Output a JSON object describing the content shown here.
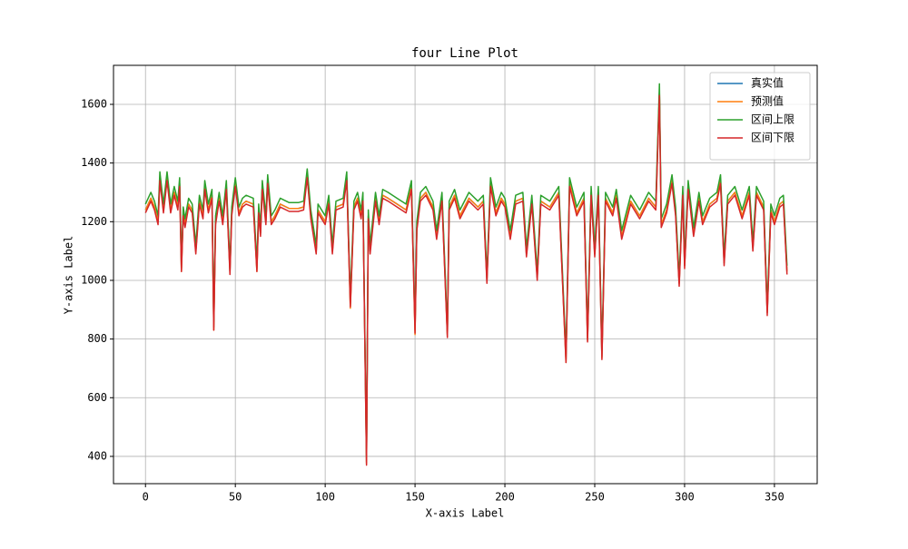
{
  "chart_data": {
    "type": "line",
    "title": "four Line Plot",
    "x_label": "X-axis Label",
    "y_label": "Y-axis Label",
    "x": [
      0,
      3,
      5,
      7,
      8,
      10,
      12,
      14,
      16,
      18,
      19,
      20,
      21,
      22,
      24,
      26,
      28,
      30,
      32,
      33,
      35,
      37,
      38,
      39,
      41,
      43,
      45,
      47,
      48,
      50,
      52,
      54,
      56,
      60,
      62,
      63,
      64,
      65,
      67,
      68,
      70,
      72,
      75,
      80,
      85,
      88,
      90,
      92,
      95,
      96,
      100,
      102,
      104,
      106,
      110,
      112,
      114,
      116,
      118,
      120,
      121,
      123,
      124,
      125,
      128,
      130,
      132,
      135,
      140,
      145,
      148,
      150,
      151,
      153,
      156,
      160,
      162,
      165,
      168,
      169,
      172,
      175,
      180,
      185,
      188,
      190,
      192,
      195,
      198,
      200,
      203,
      206,
      210,
      212,
      215,
      218,
      220,
      225,
      230,
      234,
      236,
      240,
      244,
      246,
      248,
      250,
      252,
      254,
      256,
      260,
      262,
      265,
      270,
      275,
      280,
      284,
      286,
      287,
      290,
      293,
      295,
      297,
      299,
      300,
      302,
      305,
      308,
      310,
      314,
      318,
      320,
      322,
      324,
      328,
      332,
      336,
      338,
      340,
      344,
      346,
      348,
      350,
      353,
      355,
      357
    ],
    "series": [
      {
        "name": "真实值",
        "color": "#1f77b4",
        "values": [
          1240,
          1280,
          1250,
          1200,
          1350,
          1240,
          1350,
          1240,
          1300,
          1250,
          1330,
          1040,
          1230,
          1190,
          1260,
          1240,
          1100,
          1270,
          1220,
          1320,
          1240,
          1290,
          840,
          1200,
          1280,
          1200,
          1320,
          1030,
          1230,
          1330,
          1230,
          1260,
          1270,
          1260,
          1040,
          1240,
          1160,
          1320,
          1200,
          1340,
          1200,
          1220,
          1260,
          1245,
          1245,
          1250,
          1360,
          1220,
          1100,
          1240,
          1200,
          1270,
          1100,
          1250,
          1260,
          1350,
          920,
          1250,
          1280,
          1220,
          1280,
          380,
          1220,
          1100,
          1280,
          1200,
          1290,
          1280,
          1260,
          1240,
          1320,
          830,
          1180,
          1280,
          1300,
          1250,
          1150,
          1280,
          815,
          1250,
          1290,
          1220,
          1280,
          1250,
          1270,
          1000,
          1330,
          1230,
          1280,
          1260,
          1150,
          1270,
          1280,
          1090,
          1270,
          1010,
          1270,
          1250,
          1300,
          730,
          1330,
          1230,
          1280,
          800,
          1300,
          1090,
          1300,
          740,
          1280,
          1230,
          1290,
          1150,
          1270,
          1220,
          1280,
          1250,
          1640,
          1190,
          1240,
          1340,
          1230,
          990,
          1300,
          1050,
          1320,
          1160,
          1280,
          1200,
          1260,
          1280,
          1340,
          1060,
          1270,
          1300,
          1220,
          1300,
          1110,
          1300,
          1250,
          890,
          1240,
          1200,
          1260,
          1270,
          1030
        ]
      },
      {
        "name": "预测值",
        "color": "#ff7f0e",
        "values": [
          1240,
          1280,
          1250,
          1200,
          1350,
          1240,
          1350,
          1240,
          1300,
          1250,
          1330,
          1030,
          1230,
          1190,
          1260,
          1240,
          1100,
          1270,
          1220,
          1320,
          1240,
          1290,
          830,
          1200,
          1280,
          1200,
          1320,
          1030,
          1230,
          1330,
          1230,
          1260,
          1270,
          1260,
          1030,
          1240,
          1160,
          1320,
          1200,
          1340,
          1200,
          1220,
          1260,
          1245,
          1245,
          1250,
          1360,
          1220,
          1100,
          1240,
          1200,
          1270,
          1100,
          1250,
          1260,
          1350,
          905,
          1250,
          1280,
          1220,
          1280,
          375,
          1220,
          1100,
          1280,
          1200,
          1290,
          1280,
          1260,
          1240,
          1320,
          815,
          1180,
          1280,
          1300,
          1250,
          1150,
          1280,
          810,
          1250,
          1290,
          1220,
          1280,
          1250,
          1270,
          1000,
          1330,
          1230,
          1280,
          1260,
          1150,
          1270,
          1280,
          1090,
          1270,
          1010,
          1270,
          1250,
          1300,
          720,
          1330,
          1230,
          1280,
          795,
          1300,
          1090,
          1300,
          735,
          1280,
          1230,
          1290,
          1150,
          1270,
          1220,
          1280,
          1250,
          1640,
          1190,
          1240,
          1340,
          1230,
          990,
          1300,
          1050,
          1320,
          1160,
          1280,
          1200,
          1260,
          1280,
          1340,
          1060,
          1270,
          1300,
          1220,
          1300,
          1110,
          1300,
          1250,
          890,
          1240,
          1200,
          1260,
          1270,
          1030
        ]
      },
      {
        "name": "区间上限",
        "color": "#2ca02c",
        "values": [
          1260,
          1300,
          1270,
          1220,
          1370,
          1260,
          1370,
          1260,
          1320,
          1270,
          1350,
          1060,
          1250,
          1210,
          1280,
          1260,
          1120,
          1290,
          1240,
          1340,
          1260,
          1310,
          860,
          1220,
          1300,
          1220,
          1340,
          1050,
          1250,
          1350,
          1250,
          1280,
          1290,
          1280,
          1060,
          1260,
          1180,
          1340,
          1220,
          1360,
          1220,
          1240,
          1280,
          1265,
          1265,
          1270,
          1380,
          1240,
          1120,
          1260,
          1220,
          1290,
          1120,
          1270,
          1280,
          1370,
          940,
          1270,
          1300,
          1240,
          1300,
          400,
          1240,
          1120,
          1300,
          1220,
          1310,
          1300,
          1280,
          1260,
          1340,
          850,
          1200,
          1300,
          1320,
          1270,
          1170,
          1300,
          835,
          1270,
          1310,
          1240,
          1300,
          1270,
          1290,
          1020,
          1350,
          1250,
          1300,
          1280,
          1170,
          1290,
          1300,
          1110,
          1290,
          1030,
          1290,
          1270,
          1320,
          750,
          1350,
          1250,
          1300,
          820,
          1320,
          1110,
          1320,
          760,
          1300,
          1250,
          1310,
          1170,
          1290,
          1240,
          1300,
          1270,
          1670,
          1210,
          1260,
          1360,
          1250,
          1010,
          1320,
          1070,
          1340,
          1180,
          1300,
          1220,
          1280,
          1300,
          1360,
          1080,
          1290,
          1320,
          1240,
          1320,
          1130,
          1320,
          1270,
          910,
          1260,
          1220,
          1280,
          1290,
          1050
        ]
      },
      {
        "name": "区间下限",
        "color": "#d62728",
        "values": [
          1230,
          1270,
          1240,
          1190,
          1340,
          1230,
          1340,
          1230,
          1290,
          1240,
          1320,
          1030,
          1220,
          1180,
          1250,
          1230,
          1090,
          1260,
          1210,
          1310,
          1230,
          1280,
          830,
          1190,
          1270,
          1190,
          1310,
          1020,
          1220,
          1320,
          1220,
          1250,
          1260,
          1250,
          1030,
          1230,
          1150,
          1310,
          1190,
          1330,
          1190,
          1210,
          1250,
          1235,
          1235,
          1240,
          1350,
          1210,
          1090,
          1230,
          1190,
          1260,
          1090,
          1240,
          1250,
          1340,
          910,
          1240,
          1270,
          1210,
          1270,
          370,
          1210,
          1090,
          1270,
          1190,
          1280,
          1270,
          1250,
          1230,
          1310,
          820,
          1170,
          1270,
          1290,
          1240,
          1140,
          1270,
          805,
          1240,
          1280,
          1210,
          1270,
          1240,
          1260,
          990,
          1320,
          1220,
          1270,
          1250,
          1140,
          1260,
          1270,
          1080,
          1260,
          1000,
          1260,
          1240,
          1290,
          720,
          1320,
          1220,
          1270,
          790,
          1290,
          1080,
          1290,
          730,
          1270,
          1220,
          1280,
          1140,
          1260,
          1210,
          1270,
          1240,
          1630,
          1180,
          1230,
          1330,
          1220,
          980,
          1290,
          1040,
          1310,
          1150,
          1270,
          1190,
          1250,
          1270,
          1330,
          1050,
          1260,
          1290,
          1210,
          1290,
          1100,
          1290,
          1240,
          880,
          1230,
          1190,
          1250,
          1260,
          1020
        ]
      }
    ],
    "xlim": [
      -17.8,
      373.8
    ],
    "ylim": [
      307,
      1733
    ],
    "xticks": [
      0,
      50,
      100,
      150,
      200,
      250,
      300,
      350
    ],
    "yticks": [
      400,
      600,
      800,
      1000,
      1200,
      1400,
      1600
    ],
    "grid": true,
    "legend": "upper right"
  }
}
